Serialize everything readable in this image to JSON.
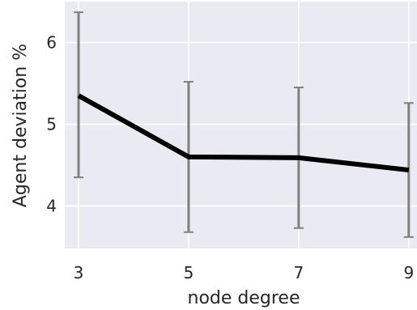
{
  "chart_data": {
    "type": "line",
    "xlabel": "node degree",
    "ylabel": "Agent deviation %",
    "x": [
      3,
      5,
      7,
      9
    ],
    "series": [
      {
        "values": [
          5.35,
          4.6,
          4.59,
          4.44
        ],
        "error_upper": [
          6.37,
          5.52,
          5.45,
          5.26
        ],
        "error_lower": [
          4.35,
          3.68,
          3.73,
          3.62
        ]
      }
    ],
    "xticks": [
      3,
      5,
      7,
      9
    ],
    "yticks": [
      4,
      5,
      6
    ],
    "xlim": [
      2.75,
      9.15
    ],
    "ylim": [
      3.48,
      6.5
    ],
    "grid": true,
    "colors": {
      "plot_background": "#eaeaf2",
      "grid": "#ffffff",
      "line": "#000000",
      "error_bar": "#808080",
      "text": "#262626"
    }
  }
}
